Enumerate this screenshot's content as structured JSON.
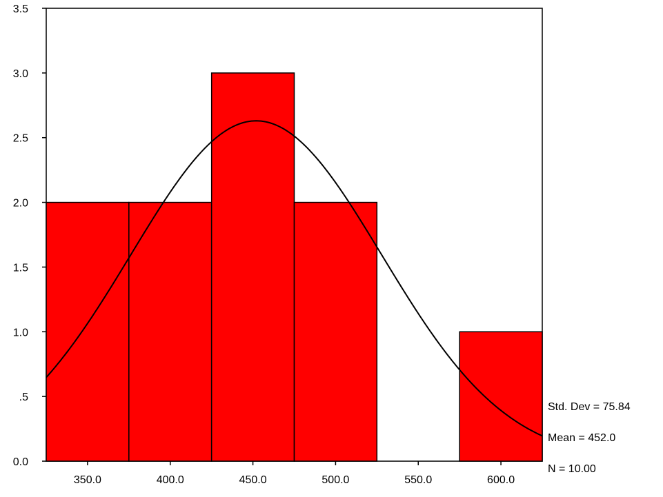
{
  "chart_data": {
    "type": "bar",
    "subtype": "histogram",
    "bins": [
      {
        "start": 325,
        "end": 375,
        "count": 2
      },
      {
        "start": 375,
        "end": 425,
        "count": 2
      },
      {
        "start": 425,
        "end": 475,
        "count": 3
      },
      {
        "start": 475,
        "end": 525,
        "count": 2
      },
      {
        "start": 525,
        "end": 575,
        "count": 0
      },
      {
        "start": 575,
        "end": 625,
        "count": 1
      }
    ],
    "x_ticks": [
      {
        "value": 350,
        "label": "350.0"
      },
      {
        "value": 400,
        "label": "400.0"
      },
      {
        "value": 450,
        "label": "450.0"
      },
      {
        "value": 500,
        "label": "500.0"
      },
      {
        "value": 550,
        "label": "550.0"
      },
      {
        "value": 600,
        "label": "600.0"
      }
    ],
    "y_ticks": [
      {
        "value": 0,
        "label": "0.0"
      },
      {
        "value": 0.5,
        "label": ".5"
      },
      {
        "value": 1,
        "label": "1.0"
      },
      {
        "value": 1.5,
        "label": "1.5"
      },
      {
        "value": 2,
        "label": "2.0"
      },
      {
        "value": 2.5,
        "label": "2.5"
      },
      {
        "value": 3,
        "label": "3.0"
      },
      {
        "value": 3.5,
        "label": "3.5"
      }
    ],
    "xlim": [
      325,
      625
    ],
    "ylim": [
      0,
      3.5
    ],
    "normal_curve": {
      "mean": 452.0,
      "std_dev": 75.84,
      "n": 10,
      "bin_width": 50
    },
    "bar_color": "#ff0000",
    "stats": {
      "std_dev": "Std. Dev = 75.84",
      "mean": "Mean = 452.0",
      "n": "N = 10.00"
    },
    "title": "",
    "xlabel": "",
    "ylabel": "",
    "grid": false
  }
}
